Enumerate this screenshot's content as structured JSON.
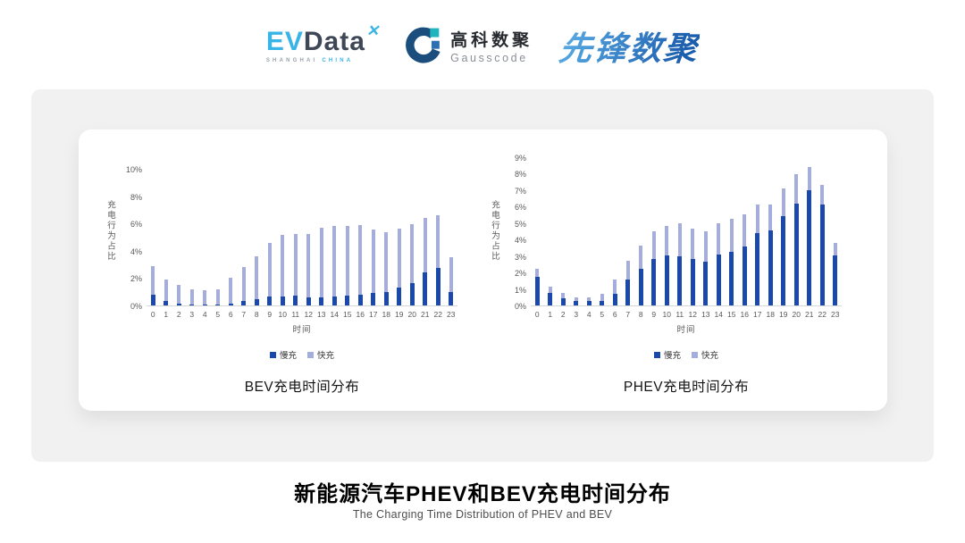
{
  "logos": {
    "evdata": {
      "ev": "EV",
      "data": "Data",
      "mark": "✕",
      "sub_left": "SHANGHAI",
      "sub_right": "CHINA"
    },
    "gausscode": {
      "cn": "高科数聚",
      "en": "Gausscode"
    },
    "xianfeng": {
      "text": "先锋数聚"
    }
  },
  "colors": {
    "slow": "#1b49ab",
    "fast": "#a4addb",
    "axis_text": "#595959",
    "evdata_cyan": "#38b4e6",
    "evdata_dark": "#3d4756",
    "gauss_arc": "#1c4e7d",
    "gauss_square_teal": "#1fb5bf",
    "gauss_square_blue": "#2c6fb3",
    "xianfeng_blue": "#2a77c2"
  },
  "chart_data": [
    {
      "type": "bar",
      "stacked": true,
      "title": "BEV充电时间分布",
      "xlabel": "时间",
      "ylabel": "充电行为占比",
      "ylim": [
        0,
        10
      ],
      "ytick_step": 2,
      "ytick_format": "percent",
      "grid": false,
      "legend_position": "bottom",
      "categories": [
        0,
        1,
        2,
        3,
        4,
        5,
        6,
        7,
        8,
        9,
        10,
        11,
        12,
        13,
        14,
        15,
        16,
        17,
        18,
        19,
        20,
        21,
        22,
        23
      ],
      "series": [
        {
          "name": "慢充",
          "color_key": "slow",
          "values": [
            0.8,
            0.35,
            0.15,
            0.1,
            0.1,
            0.1,
            0.15,
            0.35,
            0.45,
            0.65,
            0.65,
            0.7,
            0.6,
            0.6,
            0.65,
            0.7,
            0.8,
            0.9,
            1.0,
            1.3,
            1.65,
            2.45,
            2.75,
            1.0
          ]
        },
        {
          "name": "快充",
          "color_key": "fast",
          "values": [
            2.1,
            1.55,
            1.35,
            1.1,
            1.0,
            1.1,
            1.85,
            2.45,
            3.15,
            3.95,
            4.55,
            4.55,
            4.6,
            5.1,
            5.2,
            5.15,
            5.1,
            4.65,
            4.35,
            4.35,
            4.3,
            3.95,
            3.85,
            2.55
          ]
        }
      ]
    },
    {
      "type": "bar",
      "stacked": true,
      "title": "PHEV充电时间分布",
      "xlabel": "时间",
      "ylabel": "充电行为占比",
      "ylim": [
        0,
        9
      ],
      "ytick_step": 1,
      "ytick_format": "percent",
      "grid": false,
      "legend_position": "bottom",
      "categories": [
        0,
        1,
        2,
        3,
        4,
        5,
        6,
        7,
        8,
        9,
        10,
        11,
        12,
        13,
        14,
        15,
        16,
        17,
        18,
        19,
        20,
        21,
        22,
        23
      ],
      "series": [
        {
          "name": "慢充",
          "color_key": "slow",
          "values": [
            1.75,
            0.75,
            0.45,
            0.25,
            0.25,
            0.3,
            0.7,
            1.6,
            2.25,
            2.8,
            3.05,
            3.0,
            2.8,
            2.65,
            3.1,
            3.25,
            3.6,
            4.4,
            4.55,
            5.4,
            6.2,
            7.0,
            6.15,
            3.05
          ]
        },
        {
          "name": "快充",
          "color_key": "fast",
          "values": [
            0.45,
            0.4,
            0.3,
            0.25,
            0.25,
            0.4,
            0.9,
            1.1,
            1.4,
            1.7,
            1.75,
            2.0,
            1.85,
            1.85,
            1.9,
            2.0,
            1.95,
            1.75,
            1.6,
            1.7,
            1.75,
            1.4,
            1.2,
            0.75
          ]
        }
      ]
    }
  ],
  "footer": {
    "title": "新能源汽车PHEV和BEV充电时间分布",
    "subtitle": "The Charging Time Distribution of PHEV and BEV"
  }
}
